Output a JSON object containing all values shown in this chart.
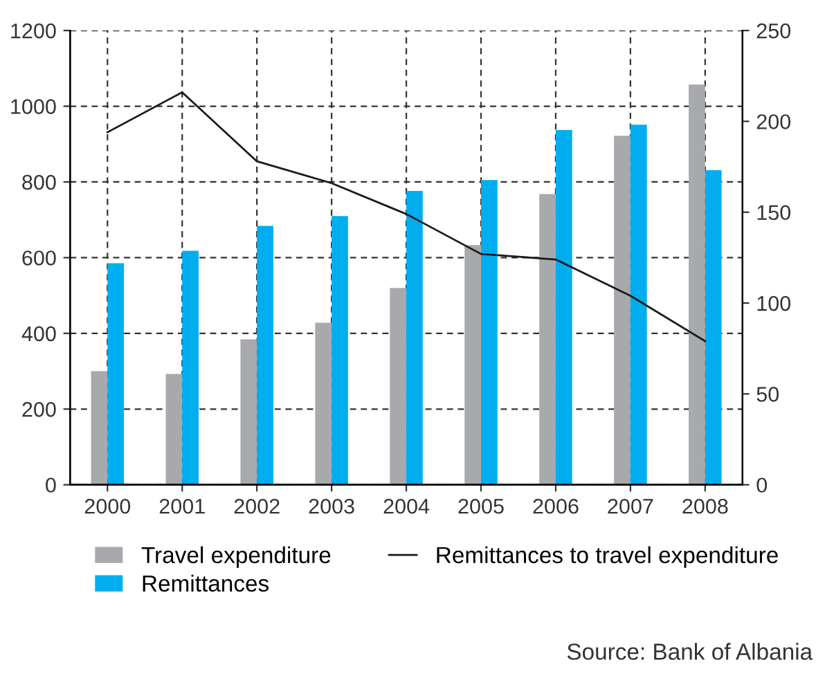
{
  "chart_data": {
    "type": "bar",
    "categories": [
      "2000",
      "2001",
      "2002",
      "2003",
      "2004",
      "2005",
      "2006",
      "2007",
      "2008"
    ],
    "series": [
      {
        "name": "Travel expenditure",
        "color": "#a7a9ac",
        "values": [
          300,
          293,
          384,
          428,
          520,
          633,
          768,
          922,
          1057
        ]
      },
      {
        "name": "Remittances",
        "color": "#00aeef",
        "values": [
          585,
          618,
          684,
          710,
          776,
          805,
          937,
          951,
          831
        ]
      },
      {
        "name": "Remittances to travel expenditure",
        "type": "line",
        "axis": "y2",
        "color": "#1a1a1a",
        "values": [
          194,
          216,
          178,
          166,
          149,
          127,
          124,
          104,
          79
        ]
      }
    ],
    "ylim": [
      0,
      1200
    ],
    "yticks": [
      0,
      200,
      400,
      600,
      800,
      1000,
      1200
    ],
    "y2lim": [
      0,
      250
    ],
    "y2ticks": [
      0,
      50,
      100,
      150,
      200,
      250
    ],
    "grid": true,
    "legend": "bottom",
    "marker": "none",
    "line_style": "solid",
    "annotations": [
      "Source: Bank of Albania"
    ]
  }
}
